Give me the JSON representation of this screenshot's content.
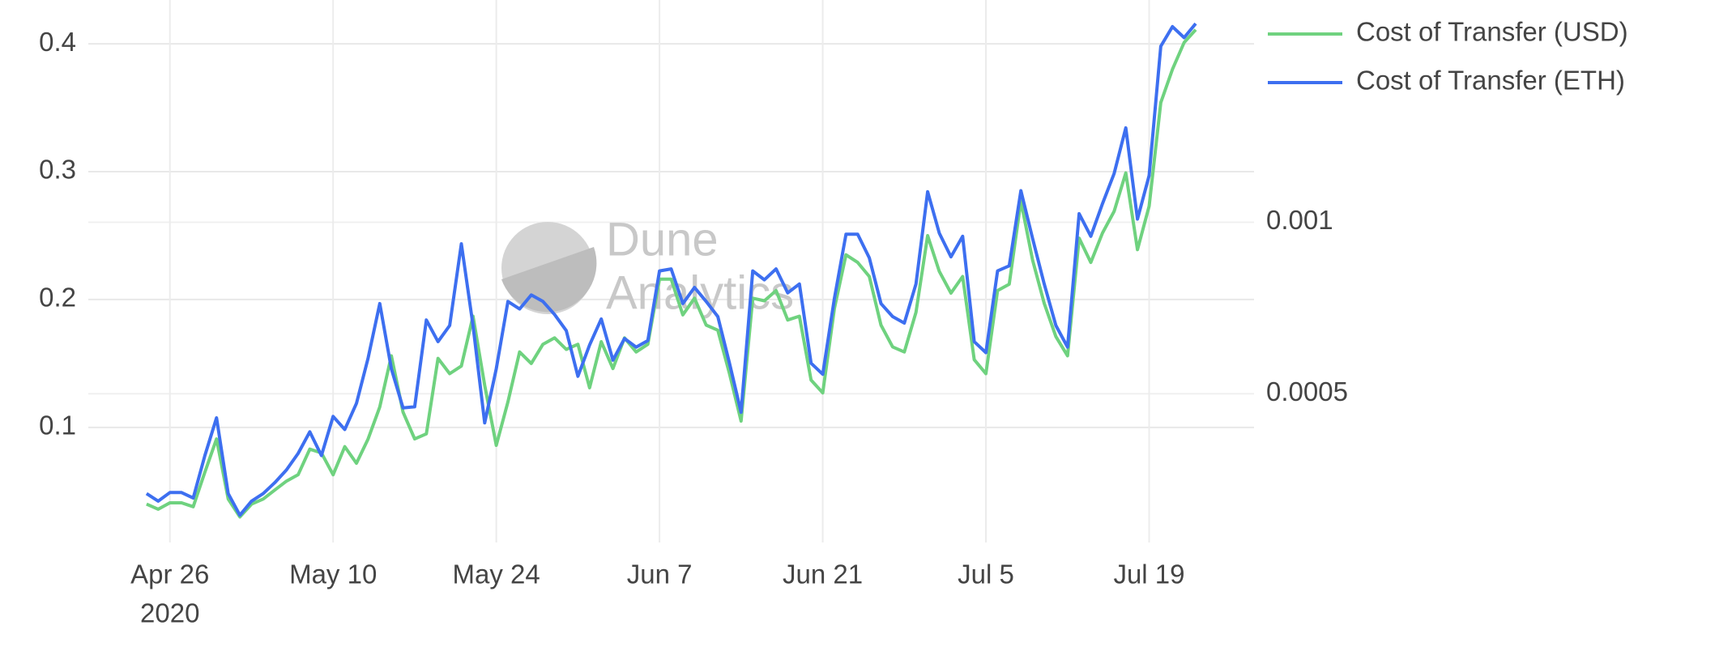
{
  "chart_data": {
    "type": "line",
    "x": [
      "2020-04-24",
      "2020-04-25",
      "2020-04-26",
      "2020-04-27",
      "2020-04-28",
      "2020-04-29",
      "2020-04-30",
      "2020-05-01",
      "2020-05-02",
      "2020-05-03",
      "2020-05-04",
      "2020-05-05",
      "2020-05-06",
      "2020-05-07",
      "2020-05-08",
      "2020-05-09",
      "2020-05-10",
      "2020-05-11",
      "2020-05-12",
      "2020-05-13",
      "2020-05-14",
      "2020-05-15",
      "2020-05-16",
      "2020-05-17",
      "2020-05-18",
      "2020-05-19",
      "2020-05-20",
      "2020-05-21",
      "2020-05-22",
      "2020-05-23",
      "2020-05-24",
      "2020-05-25",
      "2020-05-26",
      "2020-05-27",
      "2020-05-28",
      "2020-05-29",
      "2020-05-30",
      "2020-05-31",
      "2020-06-01",
      "2020-06-02",
      "2020-06-03",
      "2020-06-04",
      "2020-06-05",
      "2020-06-06",
      "2020-06-07",
      "2020-06-08",
      "2020-06-09",
      "2020-06-10",
      "2020-06-11",
      "2020-06-12",
      "2020-06-13",
      "2020-06-14",
      "2020-06-15",
      "2020-06-16",
      "2020-06-17",
      "2020-06-18",
      "2020-06-19",
      "2020-06-20",
      "2020-06-21",
      "2020-06-22",
      "2020-06-23",
      "2020-06-24",
      "2020-06-25",
      "2020-06-26",
      "2020-06-27",
      "2020-06-28",
      "2020-06-29",
      "2020-06-30",
      "2020-07-01",
      "2020-07-02",
      "2020-07-03",
      "2020-07-04",
      "2020-07-05",
      "2020-07-06",
      "2020-07-07",
      "2020-07-08",
      "2020-07-09",
      "2020-07-10",
      "2020-07-11",
      "2020-07-12",
      "2020-07-13",
      "2020-07-14",
      "2020-07-15",
      "2020-07-16",
      "2020-07-17",
      "2020-07-18",
      "2020-07-19",
      "2020-07-20",
      "2020-07-21",
      "2020-07-22",
      "2020-07-23"
    ],
    "series": [
      {
        "name": "Cost of Transfer (USD)",
        "color": "#6fd27f",
        "axis": "y",
        "values": [
          0.04,
          0.036,
          0.041,
          0.041,
          0.038,
          0.065,
          0.091,
          0.044,
          0.03,
          0.04,
          0.044,
          0.051,
          0.058,
          0.063,
          0.083,
          0.08,
          0.063,
          0.085,
          0.072,
          0.091,
          0.116,
          0.156,
          0.112,
          0.091,
          0.095,
          0.154,
          0.142,
          0.148,
          0.187,
          0.133,
          0.086,
          0.12,
          0.159,
          0.15,
          0.165,
          0.17,
          0.161,
          0.165,
          0.131,
          0.167,
          0.146,
          0.17,
          0.159,
          0.165,
          0.216,
          0.216,
          0.188,
          0.201,
          0.18,
          0.176,
          0.142,
          0.105,
          0.201,
          0.199,
          0.207,
          0.184,
          0.187,
          0.137,
          0.127,
          0.193,
          0.235,
          0.229,
          0.218,
          0.18,
          0.163,
          0.159,
          0.19,
          0.25,
          0.222,
          0.205,
          0.218,
          0.153,
          0.142,
          0.207,
          0.212,
          0.277,
          0.231,
          0.197,
          0.171,
          0.156,
          0.248,
          0.229,
          0.252,
          0.269,
          0.299,
          0.239,
          0.273,
          0.354,
          0.38,
          0.401,
          0.411
        ]
      },
      {
        "name": "Cost of Transfer (ETH)",
        "color": "#3d6ff0",
        "axis": "y2",
        "values": [
          0.000209,
          0.000187,
          0.000212,
          0.000212,
          0.000196,
          0.00032,
          0.00043,
          0.000209,
          0.000146,
          0.000187,
          0.000209,
          0.000241,
          0.000278,
          0.000326,
          0.000389,
          0.00032,
          0.000434,
          0.000396,
          0.000472,
          0.000604,
          0.000763,
          0.000573,
          0.000459,
          0.000462,
          0.000715,
          0.000652,
          0.000699,
          0.000937,
          0.000699,
          0.000415,
          0.000573,
          0.000769,
          0.000747,
          0.000788,
          0.000769,
          0.000731,
          0.000684,
          0.000551,
          0.000642,
          0.000718,
          0.000598,
          0.000661,
          0.000636,
          0.000655,
          0.000858,
          0.000864,
          0.000763,
          0.00081,
          0.000769,
          0.000725,
          0.000589,
          0.000446,
          0.000858,
          0.000832,
          0.000864,
          0.000794,
          0.00082,
          0.000589,
          0.000557,
          0.000778,
          0.000965,
          0.000965,
          0.000896,
          0.000763,
          0.000725,
          0.000706,
          0.00082,
          0.001089,
          0.000968,
          0.000899,
          0.000959,
          0.000652,
          0.00062,
          0.000858,
          0.000873,
          0.001092,
          0.000953,
          0.00082,
          0.000699,
          0.000636,
          0.001025,
          0.000959,
          0.001054,
          0.001142,
          0.001275,
          0.001009,
          0.001136,
          0.001513,
          0.00157,
          0.001538,
          0.001579
        ]
      }
    ],
    "xlim": [
      "2020-04-19",
      "2020-07-28"
    ],
    "xticks": [
      {
        "value": "2020-04-26",
        "label": "Apr 26",
        "sublabel": "2020"
      },
      {
        "value": "2020-05-10",
        "label": "May 10"
      },
      {
        "value": "2020-05-24",
        "label": "May 24"
      },
      {
        "value": "2020-06-07",
        "label": "Jun 7"
      },
      {
        "value": "2020-06-21",
        "label": "Jun 21"
      },
      {
        "value": "2020-07-05",
        "label": "Jul 5"
      },
      {
        "value": "2020-07-19",
        "label": "Jul 19"
      }
    ],
    "ylim": [
      0.01,
      0.426
    ],
    "yticks": [
      0.1,
      0.2,
      0.3,
      0.4
    ],
    "y2lim": [
      6.65e-05,
      0.001617
    ],
    "y2ticks": [
      0.0005,
      0.001
    ],
    "grid": true,
    "legend": "top-right",
    "watermark": [
      "Dune",
      "Analytics"
    ]
  }
}
